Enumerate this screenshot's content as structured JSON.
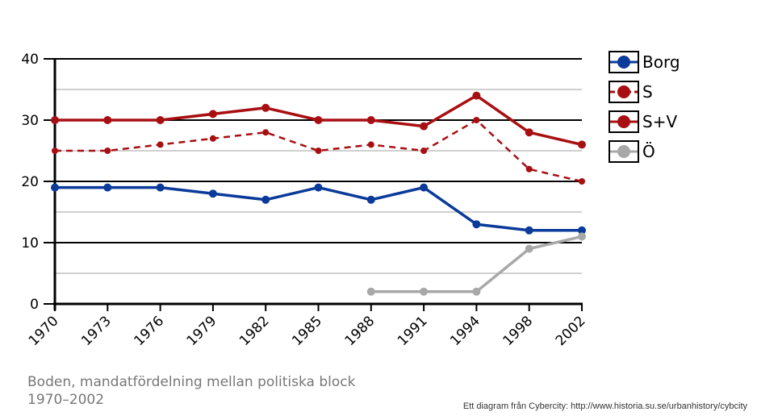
{
  "chart_data": {
    "type": "line",
    "title": "Boden, mandatfördelning mellan politiska block 1970–2002",
    "xlabel": "",
    "ylabel": "",
    "categories": [
      "1970",
      "1973",
      "1976",
      "1979",
      "1982",
      "1985",
      "1988",
      "1991",
      "1994",
      "1998",
      "2002"
    ],
    "ylim": [
      0,
      40
    ],
    "yticks": [
      0,
      10,
      20,
      30,
      40
    ],
    "series": [
      {
        "name": "Borg",
        "color": "#0a3a9a",
        "dashed": false,
        "values": [
          19,
          19,
          19,
          18,
          17,
          19,
          17,
          19,
          13,
          12,
          12
        ]
      },
      {
        "name": "S",
        "color": "#a80f12",
        "dashed": true,
        "values": [
          25,
          25,
          26,
          27,
          28,
          25,
          26,
          25,
          30,
          22,
          20
        ]
      },
      {
        "name": "S+V",
        "color": "#a80f12",
        "dashed": false,
        "values": [
          30,
          30,
          30,
          31,
          32,
          30,
          30,
          29,
          34,
          28,
          26
        ]
      },
      {
        "name": "Ö",
        "color": "#a8a8a8",
        "dashed": false,
        "values": [
          null,
          null,
          null,
          null,
          null,
          null,
          2,
          2,
          2,
          9,
          11
        ]
      }
    ]
  },
  "caption": "Boden, mandatfördelning mellan politiska block 1970–2002",
  "credit": "Ett diagram från Cybercity: http://www.historia.su.se/urbanhistory/cybcity"
}
